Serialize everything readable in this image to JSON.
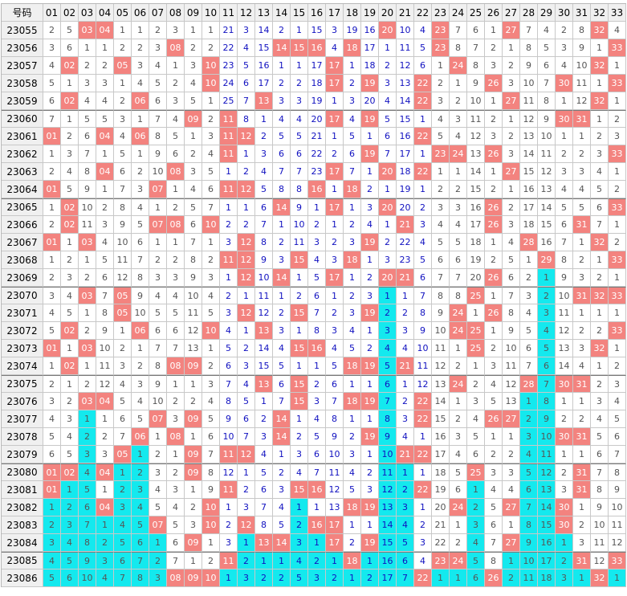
{
  "header": {
    "label": "号码",
    "columns": [
      "01",
      "02",
      "03",
      "04",
      "05",
      "06",
      "07",
      "08",
      "09",
      "10",
      "11",
      "12",
      "13",
      "14",
      "15",
      "16",
      "17",
      "18",
      "19",
      "20",
      "21",
      "22",
      "23",
      "24",
      "25",
      "26",
      "27",
      "28",
      "29",
      "30",
      "31",
      "32",
      "33"
    ]
  },
  "rows": [
    {
      "id": "23055",
      "cells": [
        2,
        5,
        "03",
        "04",
        1,
        1,
        2,
        3,
        1,
        1,
        21,
        3,
        14,
        2,
        1,
        15,
        3,
        19,
        16,
        "20",
        10,
        4,
        "23",
        7,
        6,
        1,
        "27",
        7,
        4,
        2,
        8,
        "32",
        4
      ]
    },
    {
      "id": "23056",
      "cells": [
        3,
        6,
        1,
        1,
        2,
        2,
        3,
        "08",
        2,
        2,
        22,
        4,
        15,
        "14",
        "15",
        16,
        4,
        "18",
        17,
        1,
        11,
        5,
        "23",
        8,
        7,
        2,
        1,
        8,
        5,
        3,
        9,
        1,
        "33"
      ]
    },
    {
      "id": "23057",
      "cells": [
        4,
        "02",
        2,
        2,
        "05",
        3,
        4,
        1,
        3,
        "10",
        23,
        5,
        16,
        1,
        1,
        17,
        "17",
        1,
        18,
        2,
        12,
        6,
        1,
        "24",
        8,
        3,
        2,
        9,
        6,
        4,
        10,
        "32",
        1
      ]
    },
    {
      "id": "23058",
      "cells": [
        5,
        1,
        3,
        3,
        1,
        4,
        5,
        2,
        4,
        "10",
        24,
        6,
        17,
        2,
        2,
        18,
        "17",
        2,
        19,
        3,
        13,
        "22",
        2,
        1,
        9,
        "26",
        3,
        10,
        7,
        "30",
        11,
        1,
        "33"
      ]
    },
    {
      "id": "23059",
      "cells": [
        6,
        "02",
        4,
        4,
        2,
        "06",
        6,
        3,
        5,
        1,
        25,
        7,
        "13",
        3,
        3,
        19,
        1,
        3,
        20,
        4,
        14,
        "22",
        3,
        2,
        10,
        1,
        "27",
        11,
        8,
        1,
        12,
        "32",
        1
      ]
    },
    {
      "id": "23060",
      "cells": [
        7,
        1,
        5,
        5,
        3,
        1,
        7,
        4,
        "09",
        2,
        "11",
        8,
        1,
        4,
        4,
        20,
        "17",
        4,
        "19",
        5,
        15,
        1,
        4,
        3,
        11,
        2,
        1,
        12,
        9,
        "30",
        "31",
        1,
        2
      ]
    },
    {
      "id": "23061",
      "cells": [
        "01",
        2,
        6,
        "04",
        4,
        "06",
        8,
        5,
        1,
        3,
        "11",
        "12",
        2,
        5,
        5,
        21,
        1,
        5,
        1,
        6,
        16,
        "22",
        5,
        4,
        12,
        3,
        2,
        13,
        10,
        1,
        1,
        2,
        3
      ]
    },
    {
      "id": "23062",
      "cells": [
        1,
        3,
        7,
        1,
        5,
        1,
        9,
        6,
        2,
        4,
        "11",
        1,
        3,
        6,
        6,
        22,
        2,
        6,
        "19",
        7,
        17,
        1,
        "23",
        "24",
        13,
        "26",
        3,
        14,
        11,
        2,
        2,
        3,
        "33"
      ]
    },
    {
      "id": "23063",
      "cells": [
        2,
        4,
        8,
        "04",
        6,
        2,
        10,
        "08",
        3,
        5,
        1,
        2,
        4,
        7,
        7,
        23,
        "17",
        7,
        1,
        "20",
        18,
        "22",
        1,
        1,
        14,
        1,
        "27",
        15,
        12,
        3,
        3,
        4,
        1
      ]
    },
    {
      "id": "23064",
      "cells": [
        "01",
        5,
        9,
        1,
        7,
        3,
        "07",
        1,
        4,
        6,
        "11",
        "12",
        5,
        8,
        8,
        "16",
        1,
        "18",
        2,
        1,
        19,
        1,
        2,
        2,
        15,
        2,
        1,
        16,
        13,
        4,
        4,
        5,
        2
      ]
    },
    {
      "id": "23065",
      "cells": [
        1,
        "02",
        10,
        2,
        8,
        4,
        1,
        2,
        5,
        7,
        1,
        1,
        6,
        "14",
        9,
        1,
        "17",
        1,
        3,
        "20",
        20,
        2,
        3,
        3,
        16,
        "26",
        2,
        17,
        14,
        5,
        5,
        6,
        "33"
      ]
    },
    {
      "id": "23066",
      "cells": [
        2,
        "02",
        11,
        3,
        9,
        5,
        "07",
        "08",
        6,
        "10",
        2,
        2,
        7,
        1,
        10,
        2,
        1,
        2,
        4,
        1,
        21,
        3,
        4,
        4,
        17,
        "26",
        3,
        18,
        15,
        6,
        "31",
        7,
        1
      ]
    },
    {
      "id": "23067",
      "cells": [
        "01",
        1,
        "03",
        4,
        10,
        6,
        1,
        1,
        7,
        1,
        3,
        "12",
        8,
        2,
        11,
        3,
        2,
        3,
        "19",
        2,
        22,
        4,
        5,
        5,
        18,
        1,
        4,
        "28",
        16,
        7,
        1,
        "32",
        2
      ]
    },
    {
      "id": "23068",
      "cells": [
        1,
        2,
        1,
        5,
        11,
        7,
        2,
        2,
        8,
        2,
        "11",
        "12",
        9,
        3,
        "15",
        4,
        3,
        "18",
        1,
        3,
        23,
        5,
        6,
        6,
        19,
        2,
        5,
        1,
        "29",
        8,
        2,
        1,
        "33"
      ]
    },
    {
      "id": "23069",
      "cells": [
        2,
        3,
        2,
        6,
        12,
        8,
        3,
        3,
        9,
        3,
        1,
        "12",
        10,
        "14",
        1,
        5,
        "17",
        1,
        2,
        "20",
        "21",
        6,
        7,
        7,
        20,
        "26",
        6,
        2,
        1,
        9,
        3,
        2,
        1
      ]
    },
    {
      "id": "23070",
      "cells": [
        3,
        4,
        "03",
        7,
        "05",
        9,
        4,
        4,
        10,
        4,
        2,
        1,
        11,
        1,
        2,
        6,
        1,
        2,
        3,
        1,
        1,
        7,
        8,
        8,
        "25",
        1,
        7,
        3,
        2,
        10,
        "31",
        "32",
        "33"
      ]
    },
    {
      "id": "23071",
      "cells": [
        4,
        5,
        1,
        8,
        "05",
        10,
        5,
        5,
        11,
        5,
        3,
        "12",
        12,
        2,
        "15",
        7,
        2,
        3,
        "19",
        2,
        2,
        8,
        9,
        "24",
        1,
        "26",
        8,
        4,
        3,
        11,
        1,
        1,
        1
      ]
    },
    {
      "id": "23072",
      "cells": [
        5,
        "02",
        2,
        9,
        1,
        "06",
        6,
        6,
        12,
        "10",
        4,
        1,
        13,
        3,
        1,
        8,
        3,
        4,
        1,
        3,
        3,
        9,
        10,
        "24",
        "25",
        1,
        9,
        5,
        4,
        12,
        2,
        2,
        "33"
      ]
    },
    {
      "id": "23073",
      "cells": [
        "01",
        1,
        "03",
        10,
        2,
        1,
        7,
        7,
        13,
        1,
        5,
        2,
        14,
        4,
        "15",
        "16",
        4,
        5,
        2,
        4,
        4,
        10,
        11,
        1,
        "25",
        2,
        10,
        6,
        5,
        13,
        3,
        "32",
        1
      ]
    },
    {
      "id": "23074",
      "cells": [
        1,
        "02",
        1,
        11,
        3,
        2,
        8,
        "08",
        "09",
        2,
        6,
        3,
        15,
        5,
        1,
        1,
        5,
        "18",
        "19",
        5,
        "21",
        11,
        12,
        2,
        1,
        3,
        11,
        7,
        6,
        14,
        4,
        1,
        2
      ]
    },
    {
      "id": "23075",
      "cells": [
        2,
        1,
        2,
        12,
        4,
        3,
        9,
        1,
        1,
        3,
        7,
        4,
        "13",
        6,
        "15",
        2,
        6,
        1,
        1,
        6,
        1,
        12,
        13,
        "24",
        2,
        4,
        12,
        "28",
        7,
        "30",
        "31",
        2,
        3
      ]
    },
    {
      "id": "23076",
      "cells": [
        3,
        2,
        "03",
        "04",
        5,
        4,
        10,
        2,
        2,
        4,
        8,
        5,
        1,
        7,
        "15",
        3,
        7,
        "18",
        "19",
        7,
        2,
        "22",
        14,
        1,
        3,
        5,
        13,
        1,
        8,
        1,
        1,
        3,
        4
      ]
    },
    {
      "id": "23077",
      "cells": [
        4,
        3,
        1,
        1,
        6,
        5,
        "07",
        3,
        "09",
        5,
        9,
        6,
        2,
        "14",
        1,
        4,
        8,
        1,
        1,
        8,
        3,
        "22",
        15,
        2,
        4,
        "26",
        "27",
        2,
        9,
        2,
        2,
        4,
        5
      ]
    },
    {
      "id": "23078",
      "cells": [
        5,
        4,
        2,
        2,
        7,
        "06",
        1,
        "08",
        1,
        6,
        10,
        7,
        3,
        "14",
        2,
        5,
        9,
        2,
        "19",
        9,
        4,
        1,
        16,
        3,
        5,
        1,
        1,
        3,
        10,
        "30",
        "31",
        5,
        6
      ]
    },
    {
      "id": "23079",
      "cells": [
        6,
        5,
        3,
        3,
        "05",
        1,
        2,
        1,
        "09",
        7,
        11,
        "12",
        4,
        1,
        3,
        6,
        10,
        3,
        1,
        10,
        "21",
        "22",
        17,
        4,
        6,
        2,
        2,
        4,
        11,
        1,
        1,
        6,
        7
      ]
    },
    {
      "id": "23080",
      "cells": [
        "01",
        "02",
        4,
        "04",
        1,
        2,
        3,
        2,
        "09",
        8,
        12,
        1,
        5,
        2,
        4,
        7,
        11,
        4,
        2,
        11,
        1,
        1,
        18,
        5,
        "25",
        3,
        3,
        5,
        12,
        2,
        "31",
        7,
        8
      ]
    },
    {
      "id": "23081",
      "cells": [
        "01",
        1,
        5,
        1,
        2,
        3,
        4,
        3,
        1,
        9,
        "11",
        2,
        6,
        3,
        "15",
        "16",
        12,
        5,
        3,
        12,
        2,
        "22",
        19,
        6,
        1,
        4,
        4,
        6,
        13,
        3,
        "31",
        8,
        9
      ]
    },
    {
      "id": "23082",
      "cells": [
        1,
        2,
        6,
        "04",
        3,
        4,
        5,
        4,
        2,
        10,
        1,
        3,
        7,
        4,
        1,
        1,
        13,
        "18",
        "19",
        13,
        3,
        1,
        20,
        "24",
        2,
        5,
        "27",
        7,
        14,
        "30",
        1,
        9,
        10
      ]
    },
    {
      "id": "23083",
      "cells": [
        2,
        3,
        7,
        1,
        4,
        5,
        "07",
        5,
        3,
        "10",
        2,
        "12",
        8,
        5,
        2,
        "16",
        "17",
        1,
        1,
        14,
        4,
        2,
        21,
        1,
        3,
        6,
        1,
        8,
        15,
        "30",
        2,
        10,
        11
      ]
    },
    {
      "id": "23084",
      "cells": [
        3,
        4,
        8,
        2,
        5,
        6,
        1,
        6,
        "09",
        1,
        3,
        1,
        "13",
        "14",
        3,
        1,
        "17",
        2,
        "19",
        15,
        5,
        3,
        22,
        2,
        4,
        7,
        "27",
        9,
        16,
        1,
        3,
        11,
        12
      ]
    },
    {
      "id": "23085",
      "cells": [
        4,
        5,
        9,
        3,
        6,
        7,
        2,
        7,
        1,
        2,
        "11",
        2,
        1,
        1,
        4,
        2,
        1,
        "18",
        1,
        16,
        6,
        4,
        "23",
        "24",
        5,
        8,
        1,
        10,
        17,
        2,
        "31",
        12,
        "33"
      ]
    },
    {
      "id": "23086",
      "cells": [
        5,
        6,
        10,
        4,
        7,
        8,
        3,
        "08",
        "09",
        "10",
        1,
        3,
        2,
        2,
        5,
        3,
        2,
        1,
        2,
        17,
        7,
        "22",
        1,
        1,
        6,
        "26",
        2,
        11,
        18,
        3,
        1,
        "32",
        1
      ]
    }
  ]
}
